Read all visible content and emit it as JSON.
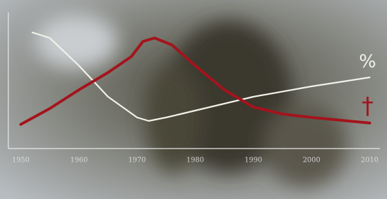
{
  "chart_data": {
    "type": "line",
    "xlim": [
      1950,
      2010
    ],
    "xticks": [
      1950,
      1960,
      1970,
      1980,
      1990,
      2000,
      2010
    ],
    "ylim": [
      0,
      100
    ],
    "grid": false,
    "series": [
      {
        "name": "%",
        "color": "#f2f2ea",
        "x": [
          1952,
          1955,
          1960,
          1965,
          1970,
          1972,
          1975,
          1980,
          1990,
          2000,
          2010
        ],
        "values": [
          84,
          80,
          60,
          37.5,
          22.5,
          20,
          22.5,
          27.5,
          37.5,
          45,
          51.5
        ]
      },
      {
        "name": "†",
        "color": "#a3141c",
        "x": [
          1950,
          1955,
          1960,
          1965,
          1969,
          1971,
          1973,
          1976,
          1980,
          1985,
          1990,
          1995,
          2000,
          2010
        ],
        "values": [
          17.5,
          29,
          42.5,
          55,
          66.5,
          77.5,
          80,
          75,
          60,
          42.5,
          30,
          25,
          22.5,
          18.5
        ]
      }
    ]
  }
}
